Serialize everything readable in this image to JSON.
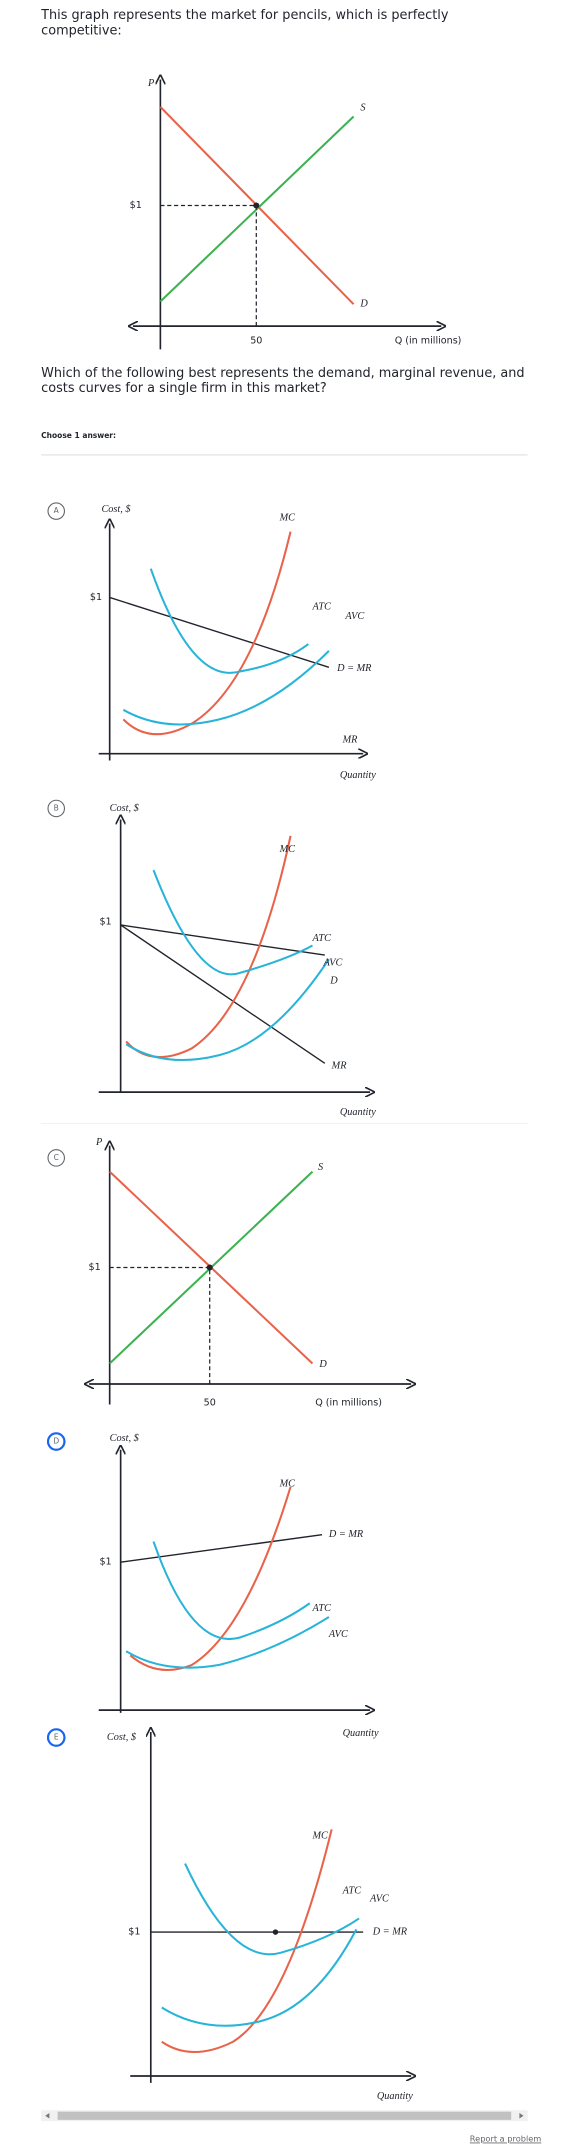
{
  "question": "This graph represents the market for pencils, which is perfectly competitive:",
  "market_graph": {
    "y_label": "P",
    "price": "$1",
    "quantity": "50",
    "supply": "S",
    "demand": "D",
    "x_label": "Q (in millions)"
  },
  "prompt": "Which of the following best represents the demand, marginal revenue, and costs curves for a single firm in this market?",
  "instruction": "Choose 1 answer:",
  "options": [
    {
      "letter": "A",
      "y_label": "Cost, $",
      "price": "$1",
      "mc": "MC",
      "atc": "ATC",
      "avc": "AVC",
      "demand": "D = MR",
      "mr": "MR",
      "x_label": "Quantity"
    },
    {
      "letter": "B",
      "y_label": "Cost, $",
      "price": "$1",
      "mc": "MC",
      "atc": "ATC",
      "avc": "AVC",
      "demand": "D",
      "mr": "MR",
      "x_label": "Quantity"
    },
    {
      "letter": "C",
      "y_label": "P",
      "price": "$1",
      "quantity": "50",
      "supply": "S",
      "demand": "D",
      "x_label": "Q (in millions)"
    },
    {
      "letter": "D",
      "y_label": "Cost, $",
      "price": "$1",
      "mc": "MC",
      "demand": "D = MR",
      "atc": "ATC",
      "avc": "AVC",
      "x_label": "Quantity"
    },
    {
      "letter": "E",
      "y_label": "Cost, $",
      "price": "$1",
      "mc": "MC",
      "atc": "ATC",
      "avc": "AVC",
      "demand": "D = MR",
      "x_label": "Quantity"
    }
  ],
  "footer": "Report a problem"
}
